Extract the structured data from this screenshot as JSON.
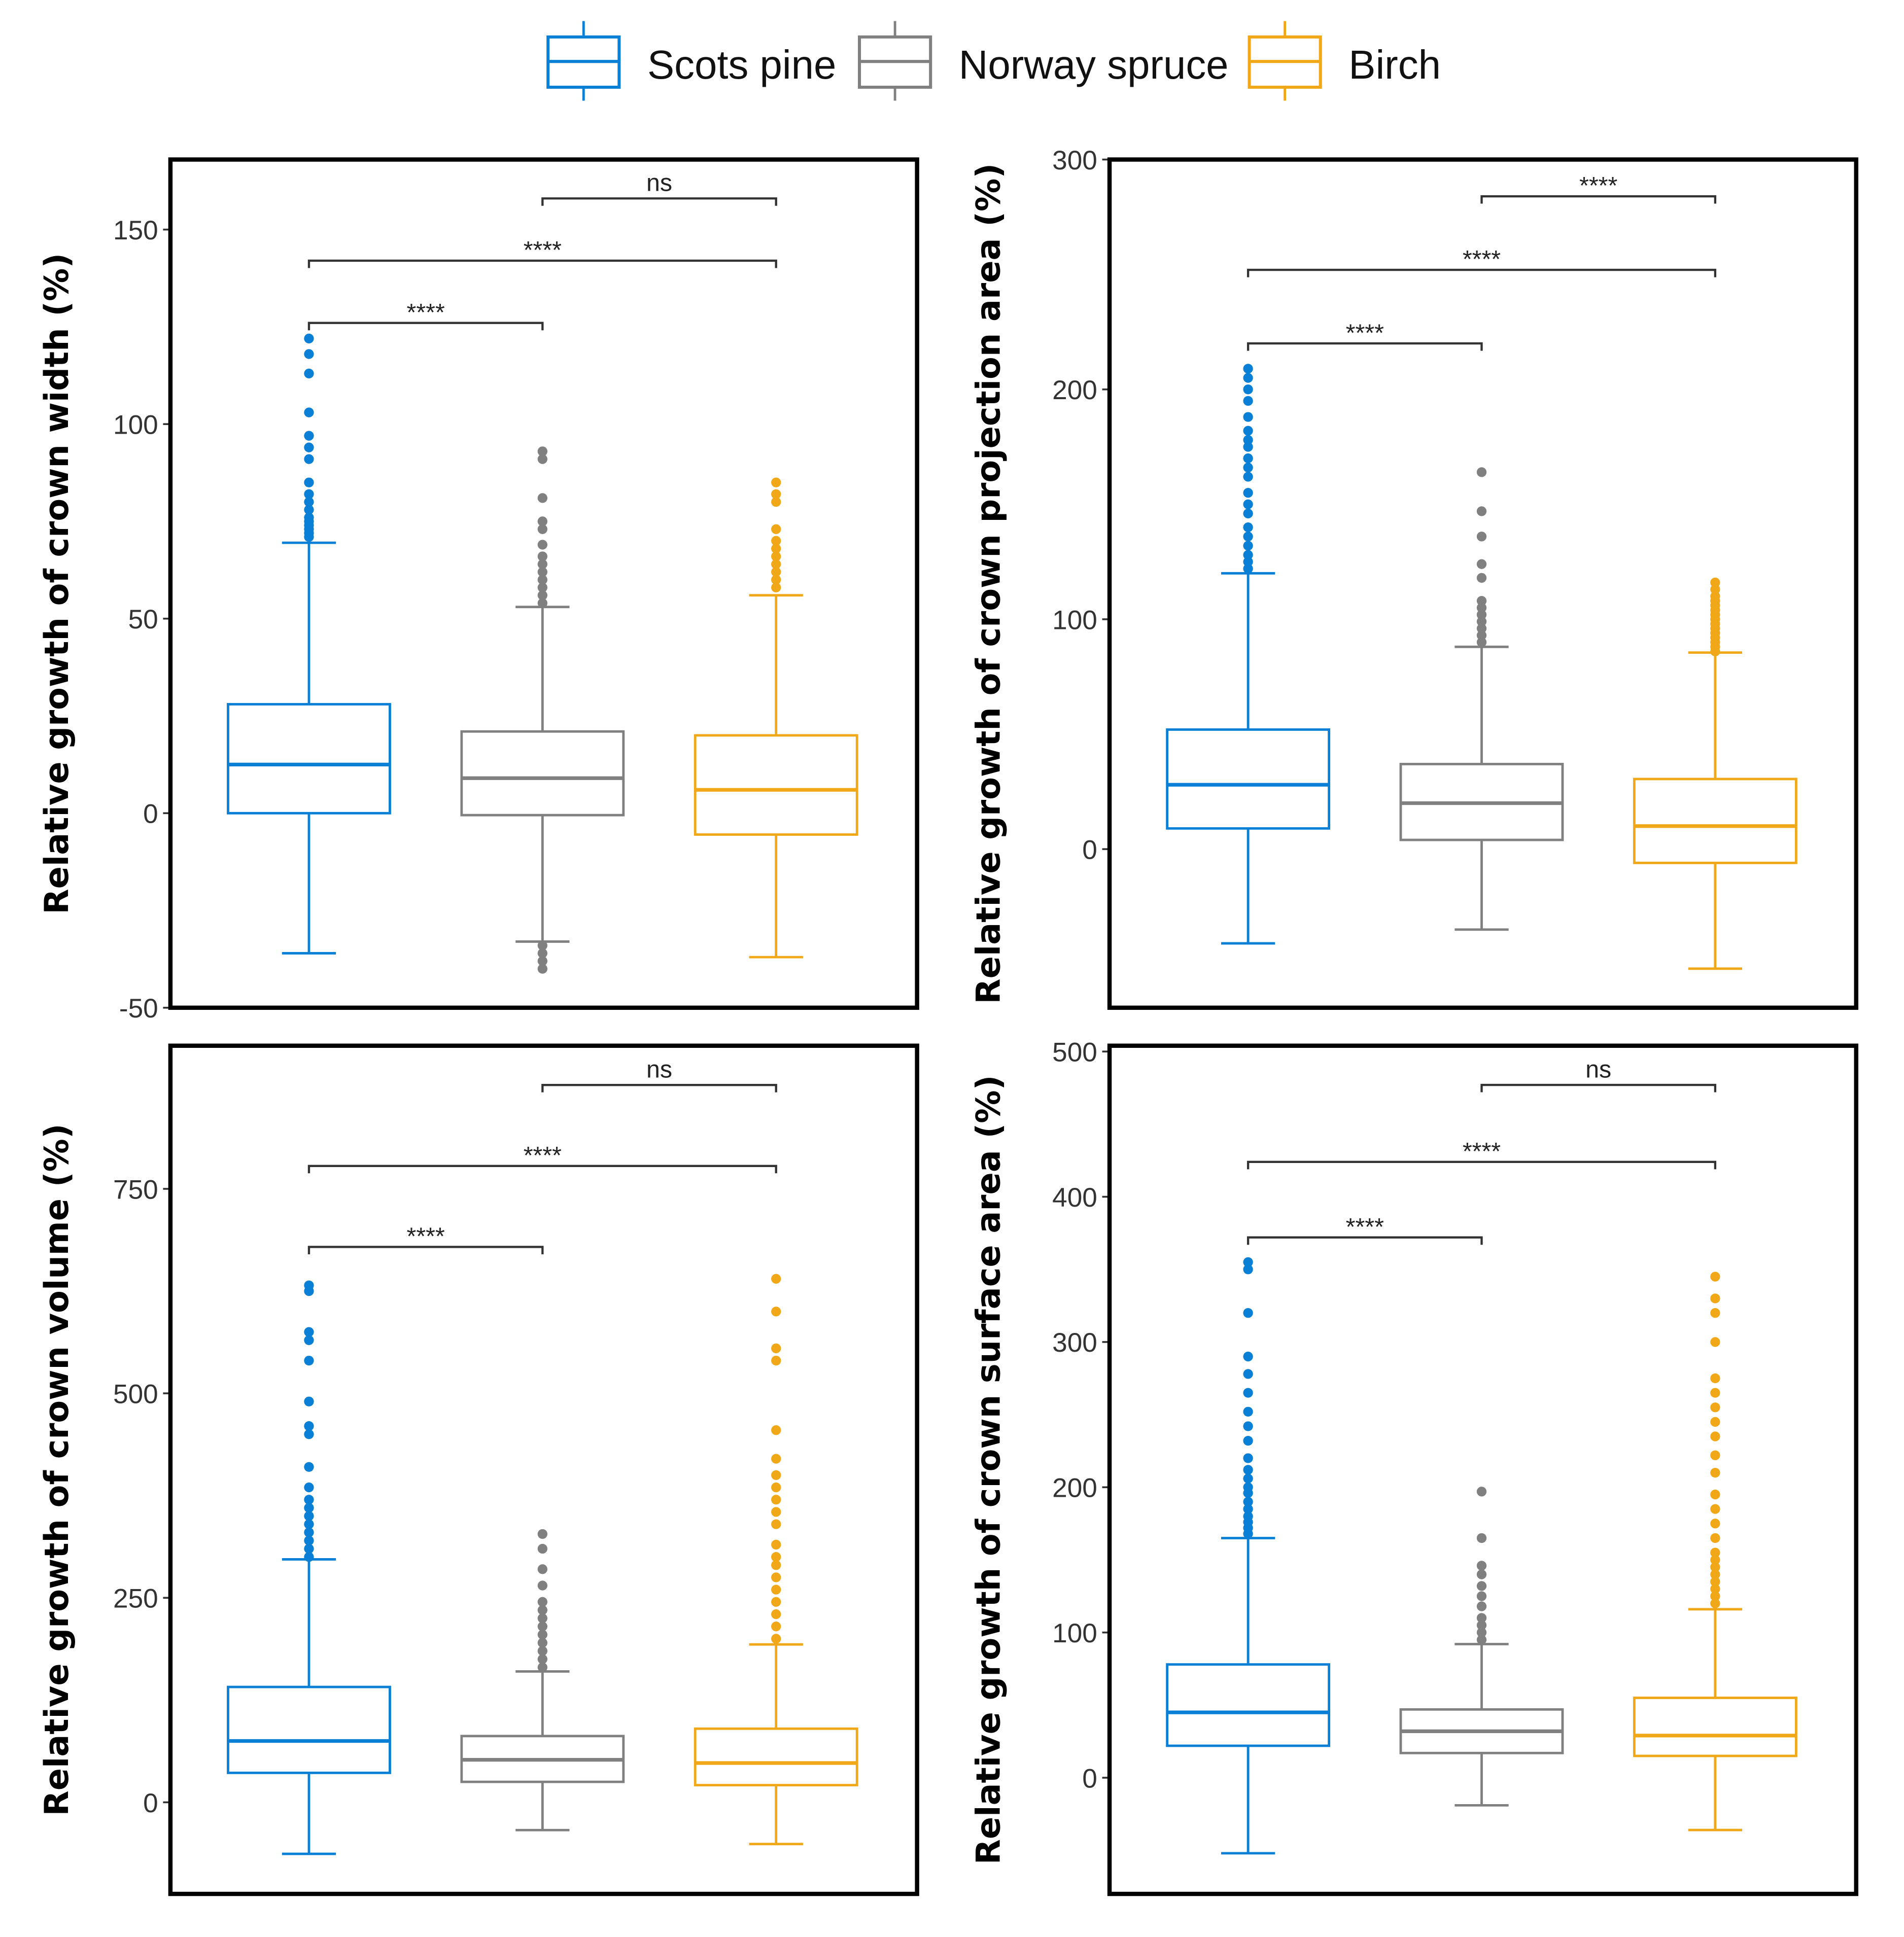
{
  "legend": [
    {
      "name": "Scots pine",
      "color": "#0a7fd6"
    },
    {
      "name": "Norway spruce",
      "color": "#808080"
    },
    {
      "name": "Birch",
      "color": "#f0a818"
    }
  ],
  "chart_data": [
    {
      "type": "box",
      "ylabel": "Relative growth of crown width (%)",
      "ylim": [
        -50,
        168
      ],
      "yticks": [
        -50,
        0,
        50,
        100,
        150
      ],
      "groups": [
        "Scots pine",
        "Norway spruce",
        "Birch"
      ],
      "boxes": [
        {
          "low": -36,
          "q1": 0,
          "median": 12.5,
          "q3": 28,
          "high": 69.5,
          "outliers": [
            71,
            72,
            73,
            74,
            75,
            76,
            78,
            80,
            82,
            85,
            91,
            94,
            97,
            103,
            113,
            118,
            122
          ]
        },
        {
          "low": -33,
          "q1": -0.5,
          "median": 9,
          "q3": 21,
          "high": 53,
          "outliers": [
            -34,
            -36,
            -38,
            -40,
            54,
            56,
            58,
            60,
            62,
            64,
            66,
            69,
            73,
            75,
            81,
            91,
            93
          ]
        },
        {
          "low": -37,
          "q1": -5.5,
          "median": 6,
          "q3": 20,
          "high": 56,
          "outliers": [
            58,
            60,
            62,
            64,
            66,
            68,
            70,
            73,
            80,
            82,
            85
          ]
        }
      ],
      "comparisons": [
        {
          "from": 0,
          "to": 1,
          "y": 126,
          "label": "****"
        },
        {
          "from": 0,
          "to": 2,
          "y": 142,
          "label": "****"
        },
        {
          "from": 1,
          "to": 2,
          "y": 158,
          "label": "ns"
        }
      ]
    },
    {
      "type": "box",
      "ylabel": "Relative growth of crown projection area (%)",
      "ylim": [
        -69,
        300
      ],
      "yticks": [
        0,
        100,
        200,
        300
      ],
      "groups": [
        "Scots pine",
        "Norway spruce",
        "Birch"
      ],
      "boxes": [
        {
          "low": -41,
          "q1": 9,
          "median": 28,
          "q3": 52,
          "high": 120,
          "outliers": [
            122,
            125,
            128,
            132,
            136,
            140,
            146,
            150,
            155,
            162,
            166,
            170,
            175,
            178,
            182,
            188,
            195,
            200,
            205,
            209
          ]
        },
        {
          "low": -35,
          "q1": 4,
          "median": 20,
          "q3": 37,
          "high": 88,
          "outliers": [
            90,
            93,
            96,
            99,
            102,
            105,
            108,
            118,
            124,
            136,
            147,
            164
          ]
        },
        {
          "low": -52,
          "q1": -6,
          "median": 10,
          "q3": 30.5,
          "high": 85.5,
          "outliers": [
            86,
            88,
            90,
            92,
            94,
            96,
            98,
            100,
            102,
            104,
            106,
            108,
            110,
            113,
            116
          ]
        }
      ],
      "comparisons": [
        {
          "from": 0,
          "to": 1,
          "y": 220,
          "label": "****"
        },
        {
          "from": 0,
          "to": 2,
          "y": 252,
          "label": "****"
        },
        {
          "from": 1,
          "to": 2,
          "y": 284,
          "label": "****"
        }
      ]
    },
    {
      "type": "box",
      "ylabel": "Relative growth of crown volume (%)",
      "ylim": [
        -112,
        925
      ],
      "yticks": [
        0,
        250,
        500,
        750
      ],
      "groups": [
        "Scots pine",
        "Norway spruce",
        "Birch"
      ],
      "boxes": [
        {
          "low": -63,
          "q1": 36,
          "median": 75,
          "q3": 141,
          "high": 297,
          "outliers": [
            300,
            310,
            320,
            330,
            340,
            350,
            360,
            370,
            385,
            410,
            450,
            460,
            490,
            540,
            565,
            575,
            625,
            632
          ]
        },
        {
          "low": -34,
          "q1": 25,
          "median": 52,
          "q3": 81,
          "high": 160,
          "outliers": [
            165,
            175,
            185,
            195,
            205,
            215,
            225,
            235,
            245,
            265,
            285,
            310,
            328
          ]
        },
        {
          "low": -51,
          "q1": 21,
          "median": 48,
          "q3": 90,
          "high": 193,
          "outliers": [
            200,
            215,
            230,
            245,
            260,
            275,
            290,
            300,
            315,
            340,
            355,
            370,
            385,
            400,
            420,
            455,
            540,
            555,
            600,
            640
          ]
        }
      ],
      "comparisons": [
        {
          "from": 0,
          "to": 1,
          "y": 679,
          "label": "****"
        },
        {
          "from": 0,
          "to": 2,
          "y": 778,
          "label": "****"
        },
        {
          "from": 1,
          "to": 2,
          "y": 877,
          "label": "ns"
        }
      ]
    },
    {
      "type": "box",
      "ylabel": "Relative growth of crown surface area (%)",
      "ylim": [
        -80,
        504
      ],
      "yticks": [
        0,
        100,
        200,
        300,
        400,
        500
      ],
      "groups": [
        "Scots pine",
        "Norway spruce",
        "Birch"
      ],
      "boxes": [
        {
          "low": -52,
          "q1": 22,
          "median": 45,
          "q3": 78,
          "high": 165,
          "outliers": [
            168,
            172,
            176,
            180,
            185,
            190,
            196,
            200,
            206,
            212,
            220,
            232,
            242,
            252,
            265,
            278,
            290,
            320,
            350,
            355
          ]
        },
        {
          "low": -19,
          "q1": 17,
          "median": 32,
          "q3": 47,
          "high": 92,
          "outliers": [
            95,
            100,
            105,
            110,
            118,
            125,
            132,
            140,
            146,
            165,
            197
          ]
        },
        {
          "low": -36,
          "q1": 15,
          "median": 29,
          "q3": 55,
          "high": 116,
          "outliers": [
            120,
            125,
            130,
            135,
            140,
            145,
            150,
            155,
            165,
            175,
            185,
            195,
            210,
            222,
            235,
            245,
            255,
            265,
            275,
            300,
            320,
            330,
            345
          ]
        }
      ],
      "comparisons": [
        {
          "from": 0,
          "to": 1,
          "y": 372,
          "label": "****"
        },
        {
          "from": 0,
          "to": 2,
          "y": 424,
          "label": "****"
        },
        {
          "from": 1,
          "to": 2,
          "y": 477,
          "label": "ns"
        }
      ]
    }
  ]
}
